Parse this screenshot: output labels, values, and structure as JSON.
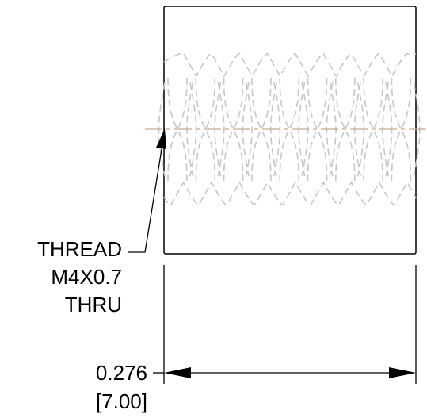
{
  "callout": {
    "line1": "THREAD",
    "line2": "M4X0.7",
    "line3": "THRU"
  },
  "dimension": {
    "inches": "0.276",
    "mm": "[7.00]"
  },
  "colors": {
    "outline": "#000000",
    "hidden_thread": "#c4c6d0",
    "centerline": "#c8a98a"
  }
}
